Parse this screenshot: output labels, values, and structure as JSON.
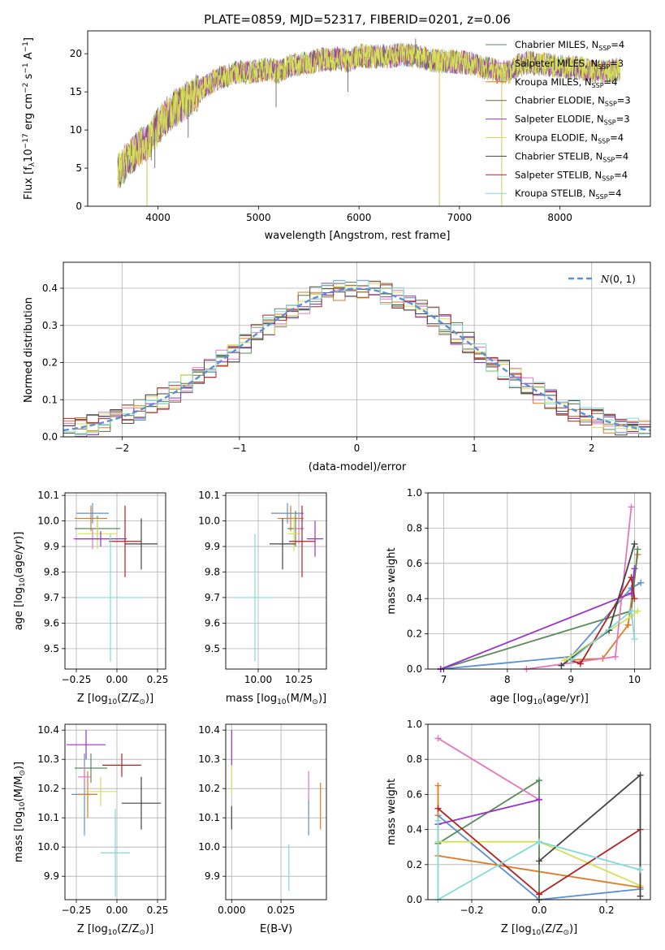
{
  "chart_data": [
    {
      "type": "line",
      "title": "PLATE=0859, MJD=52317, FIBERID=0201, z=0.06",
      "xlabel": "wavelength [Angstrom, rest frame]",
      "ylabel_parts": [
        "Flux [f",
        "λ",
        "10",
        "−17",
        " erg cm",
        "−2",
        " s",
        "−1",
        " A",
        "−1",
        "]"
      ],
      "xlim": [
        3300,
        8900
      ],
      "ylim": [
        0,
        23
      ],
      "xticks": [
        4000,
        5000,
        6000,
        7000,
        8000
      ],
      "yticks": [
        0,
        5,
        10,
        15,
        20
      ],
      "xtick_labels": [
        "4000",
        "5000",
        "6000",
        "7000",
        "8000"
      ],
      "ytick_labels": [
        "0",
        "5",
        "10",
        "15",
        "20"
      ],
      "legend_position": "top-right",
      "series": [
        {
          "name": "Chabrier MILES, N",
          "sub": "SSP",
          "tail": "=4",
          "color": "#5a8a5a"
        },
        {
          "name": "Salpeter MILES, N",
          "sub": "SSP",
          "tail": "=3",
          "color": "#e377c2"
        },
        {
          "name": "Kroupa MILES, N",
          "sub": "SSP",
          "tail": "=4",
          "color": "#e07b24"
        },
        {
          "name": "Chabrier ELODIE, N",
          "sub": "SSP",
          "tail": "=3",
          "color": "#6b6b3a"
        },
        {
          "name": "Salpeter ELODIE, N",
          "sub": "SSP",
          "tail": "=3",
          "color": "#9932cc"
        },
        {
          "name": "Kroupa ELODIE, N",
          "sub": "SSP",
          "tail": "=4",
          "color": "#d4e157"
        },
        {
          "name": "Chabrier STELIB, N",
          "sub": "SSP",
          "tail": "=4",
          "color": "#444444"
        },
        {
          "name": "Salpeter STELIB, N",
          "sub": "SSP",
          "tail": "=4",
          "color": "#b22222"
        },
        {
          "name": "Kroupa STELIB, N",
          "sub": "SSP",
          "tail": "=4",
          "color": "#7fdbda"
        }
      ],
      "continuum": [
        [
          3600,
          4.5
        ],
        [
          3700,
          6
        ],
        [
          3800,
          7.5
        ],
        [
          3900,
          8.5
        ],
        [
          4000,
          10.5
        ],
        [
          4100,
          12
        ],
        [
          4200,
          13.2
        ],
        [
          4300,
          14
        ],
        [
          4400,
          15
        ],
        [
          4500,
          16
        ],
        [
          4600,
          16.8
        ],
        [
          4700,
          17.2
        ],
        [
          4800,
          17.6
        ],
        [
          4900,
          17.5
        ],
        [
          5000,
          17.8
        ],
        [
          5100,
          18
        ],
        [
          5200,
          17.6
        ],
        [
          5300,
          18.4
        ],
        [
          5400,
          18.6
        ],
        [
          5500,
          18.8
        ],
        [
          5600,
          19.2
        ],
        [
          5700,
          19.2
        ],
        [
          5800,
          19.4
        ],
        [
          5900,
          19
        ],
        [
          6000,
          19.8
        ],
        [
          6100,
          19.6
        ],
        [
          6200,
          19.6
        ],
        [
          6300,
          19.7
        ],
        [
          6400,
          19.8
        ],
        [
          6500,
          19.8
        ],
        [
          6600,
          19.6
        ],
        [
          6700,
          19.3
        ],
        [
          6800,
          19
        ],
        [
          6900,
          19
        ],
        [
          7000,
          18.9
        ],
        [
          7100,
          18.8
        ],
        [
          7200,
          18.4
        ],
        [
          7300,
          18
        ],
        [
          7400,
          17.6
        ],
        [
          7500,
          17.6
        ],
        [
          7600,
          18.6
        ],
        [
          7700,
          18.8
        ],
        [
          7800,
          18.6
        ],
        [
          7900,
          18.5
        ],
        [
          8000,
          18.3
        ],
        [
          8100,
          18.2
        ],
        [
          8200,
          18.2
        ],
        [
          8300,
          17.7
        ],
        [
          8400,
          17.6
        ],
        [
          8500,
          17.8
        ],
        [
          8600,
          17.9
        ]
      ],
      "spikes": [
        [
          3890,
          0
        ],
        [
          3933,
          6
        ],
        [
          3968,
          5
        ],
        [
          4300,
          9
        ],
        [
          5175,
          13
        ],
        [
          5890,
          15
        ],
        [
          6563,
          22
        ],
        [
          6800,
          0
        ],
        [
          7420,
          0
        ]
      ]
    },
    {
      "type": "bar",
      "xlabel": "(data-model)/error",
      "ylabel": "Normed distribution",
      "xlim": [
        -2.5,
        2.5
      ],
      "ylim": [
        0,
        0.47
      ],
      "xticks": [
        -2,
        -1,
        0,
        1,
        2
      ],
      "xtick_labels": [
        "−2",
        "−1",
        "0",
        "1",
        "2"
      ],
      "yticks": [
        0,
        0.1,
        0.2,
        0.3,
        0.4
      ],
      "ytick_labels": [
        "0.0",
        "0.1",
        "0.2",
        "0.3",
        "0.4"
      ],
      "bin_width": 0.1,
      "legend": {
        "dash_color": "#5b8fd6",
        "label_n": "N",
        "label_args": "(0, 1)",
        "position": "top-right"
      }
    },
    {
      "type": "scatter",
      "name": "age-vs-Z",
      "xlabel_parts": [
        "Z [log",
        "10",
        "(Z/Z",
        "⊙",
        ")]"
      ],
      "ylabel_parts": [
        "age  [log",
        "10",
        "(age/yr)]"
      ],
      "xlim": [
        -0.32,
        0.3
      ],
      "ylim": [
        9.42,
        10.11
      ],
      "xticks": [
        -0.25,
        0,
        0.25
      ],
      "xtick_labels": [
        "−0.25",
        "0.00",
        "0.25"
      ],
      "yticks": [
        9.5,
        9.6,
        9.7,
        9.8,
        9.9,
        10.0,
        10.1
      ],
      "ytick_labels": [
        "9.5",
        "9.6",
        "9.7",
        "9.8",
        "9.9",
        "10.0",
        "10.1"
      ],
      "points": [
        {
          "x": -0.15,
          "xerr": 0.1,
          "y": 10.03,
          "yerr": 0.04,
          "color": "#5b8fd6"
        },
        {
          "x": -0.16,
          "xerr": 0.1,
          "y": 10.01,
          "yerr": 0.05,
          "color": "#e07b24"
        },
        {
          "x": -0.12,
          "xerr": 0.14,
          "y": 9.97,
          "yerr": 0.05,
          "color": "#5a8a5a"
        },
        {
          "x": -0.12,
          "xerr": 0.12,
          "y": 9.95,
          "yerr": 0.06,
          "color": "#d4e157"
        },
        {
          "x": -0.15,
          "xerr": 0.12,
          "y": 9.93,
          "yerr": 0.04,
          "color": "#e377c2"
        },
        {
          "x": -0.1,
          "xerr": 0.16,
          "y": 9.93,
          "yerr": 0.03,
          "color": "#9932cc"
        },
        {
          "x": 0.05,
          "xerr": 0.1,
          "y": 9.92,
          "yerr": 0.14,
          "color": "#b22222"
        },
        {
          "x": 0.15,
          "xerr": 0.1,
          "y": 9.91,
          "yerr": 0.1,
          "color": "#444444"
        },
        {
          "x": -0.04,
          "xerr": 0.2,
          "y": 9.7,
          "yerr": 0.25,
          "color": "#7fdbda"
        }
      ]
    },
    {
      "type": "scatter",
      "name": "age-vs-mass",
      "xlabel_parts": [
        "mass [log",
        "10",
        "(M/M",
        "⊙",
        ")]"
      ],
      "xlim": [
        9.8,
        10.42
      ],
      "ylim": [
        9.42,
        10.11
      ],
      "xticks": [
        10.0,
        10.25
      ],
      "xtick_labels": [
        "10.00",
        "10.25"
      ],
      "yticks": [
        9.5,
        9.6,
        9.7,
        9.8,
        9.9,
        10.0,
        10.1
      ],
      "ytick_labels": [
        "9.5",
        "9.6",
        "9.7",
        "9.8",
        "9.9",
        "10.0",
        "10.1"
      ],
      "points": [
        {
          "x": 10.18,
          "xerr": 0.1,
          "y": 10.03,
          "yerr": 0.04,
          "color": "#5b8fd6"
        },
        {
          "x": 10.2,
          "xerr": 0.08,
          "y": 10.01,
          "yerr": 0.05,
          "color": "#e07b24"
        },
        {
          "x": 10.23,
          "xerr": 0.05,
          "y": 9.97,
          "yerr": 0.07,
          "color": "#5a8a5a"
        },
        {
          "x": 10.22,
          "xerr": 0.04,
          "y": 9.95,
          "yerr": 0.07,
          "color": "#d4e157"
        },
        {
          "x": 10.25,
          "xerr": 0.03,
          "y": 9.97,
          "yerr": 0.06,
          "color": "#e377c2"
        },
        {
          "x": 10.35,
          "xerr": 0.05,
          "y": 9.93,
          "yerr": 0.07,
          "color": "#9932cc"
        },
        {
          "x": 10.27,
          "xerr": 0.08,
          "y": 9.92,
          "yerr": 0.14,
          "color": "#b22222"
        },
        {
          "x": 10.15,
          "xerr": 0.08,
          "y": 9.91,
          "yerr": 0.1,
          "color": "#444444"
        },
        {
          "x": 9.98,
          "xerr": 0.12,
          "y": 9.7,
          "yerr": 0.25,
          "color": "#7fdbda"
        }
      ]
    },
    {
      "type": "line",
      "name": "mass-weight-vs-age",
      "xlabel_parts": [
        "age  [log",
        "10",
        "(age/yr)]"
      ],
      "ylabel": "mass weight",
      "xlim": [
        6.75,
        10.25
      ],
      "ylim": [
        0,
        1
      ],
      "xticks": [
        7,
        8,
        9,
        10
      ],
      "xtick_labels": [
        "7",
        "8",
        "9",
        "10"
      ],
      "yticks": [
        0,
        0.2,
        0.4,
        0.6,
        0.8,
        1.0
      ],
      "ytick_labels": [
        "0.0",
        "0.2",
        "0.4",
        "0.6",
        "0.8",
        "1.0"
      ],
      "series": [
        {
          "color": "#5b8fd6",
          "x": [
            6.95,
            9.0,
            9.95,
            10.1
          ],
          "y": [
            0.0,
            0.07,
            0.46,
            0.49
          ]
        },
        {
          "color": "#e07b24",
          "x": [
            8.9,
            9.5,
            9.9,
            10.05
          ],
          "y": [
            0.05,
            0.06,
            0.25,
            0.65
          ]
        },
        {
          "color": "#5a8a5a",
          "x": [
            6.95,
            9.95,
            10.05
          ],
          "y": [
            0.0,
            0.33,
            0.68
          ]
        },
        {
          "color": "#d4e157",
          "x": [
            8.9,
            9.95,
            10.05
          ],
          "y": [
            0.05,
            0.3,
            0.33
          ]
        },
        {
          "color": "#e377c2",
          "x": [
            8.3,
            9.7,
            9.95
          ],
          "y": [
            0.0,
            0.07,
            0.92
          ]
        },
        {
          "color": "#9932cc",
          "x": [
            6.95,
            9.95,
            10.0
          ],
          "y": [
            0.0,
            0.43,
            0.57
          ]
        },
        {
          "color": "#b22222",
          "x": [
            9.0,
            9.15,
            9.95,
            10.0
          ],
          "y": [
            0.05,
            0.03,
            0.52,
            0.4
          ]
        },
        {
          "color": "#444444",
          "x": [
            8.85,
            9.6,
            10.0
          ],
          "y": [
            0.02,
            0.22,
            0.71
          ]
        },
        {
          "color": "#7fdbda",
          "x": [
            9.0,
            9.95,
            10.0
          ],
          "y": [
            0.05,
            0.33,
            0.17
          ]
        }
      ]
    },
    {
      "type": "scatter",
      "name": "mass-vs-Z",
      "xlabel_parts": [
        "Z [log",
        "10",
        "(Z/Z",
        "⊙",
        ")]"
      ],
      "ylabel_parts": [
        "mass [log",
        "10",
        "(M/M",
        "⊙",
        ")]"
      ],
      "xlim": [
        -0.32,
        0.3
      ],
      "ylim": [
        9.82,
        10.42
      ],
      "xticks": [
        -0.25,
        0,
        0.25
      ],
      "xtick_labels": [
        "−0.25",
        "0.00",
        "0.25"
      ],
      "yticks": [
        9.9,
        10.0,
        10.1,
        10.2,
        10.3,
        10.4
      ],
      "ytick_labels": [
        "9.9",
        "10.0",
        "10.1",
        "10.2",
        "10.3",
        "10.4"
      ],
      "points": [
        {
          "x": -0.2,
          "xerr": 0.08,
          "y": 10.18,
          "yerr": 0.14,
          "color": "#5b8fd6"
        },
        {
          "x": -0.18,
          "xerr": 0.06,
          "y": 10.18,
          "yerr": 0.08,
          "color": "#e07b24"
        },
        {
          "x": -0.16,
          "xerr": 0.1,
          "y": 10.27,
          "yerr": 0.05,
          "color": "#5a8a5a"
        },
        {
          "x": -0.1,
          "xerr": 0.1,
          "y": 10.19,
          "yerr": 0.05,
          "color": "#d4e157"
        },
        {
          "x": -0.2,
          "xerr": 0.04,
          "y": 10.24,
          "yerr": 0.04,
          "color": "#e377c2"
        },
        {
          "x": -0.19,
          "xerr": 0.12,
          "y": 10.35,
          "yerr": 0.05,
          "color": "#9932cc"
        },
        {
          "x": 0.03,
          "xerr": 0.12,
          "y": 10.28,
          "yerr": 0.04,
          "color": "#b22222"
        },
        {
          "x": 0.15,
          "xerr": 0.12,
          "y": 10.15,
          "yerr": 0.09,
          "color": "#444444"
        },
        {
          "x": -0.01,
          "xerr": 0.09,
          "y": 9.98,
          "yerr": 0.15,
          "color": "#7fdbda"
        }
      ]
    },
    {
      "type": "scatter",
      "name": "mass-vs-EBV",
      "xlabel": "E(B-V)",
      "xlim": [
        -0.003,
        0.048
      ],
      "ylim": [
        9.82,
        10.42
      ],
      "xticks": [
        0,
        0.025
      ],
      "xtick_labels": [
        "0.000",
        "0.025"
      ],
      "yticks": [
        9.9,
        10.0,
        10.1,
        10.2,
        10.3,
        10.4
      ],
      "ytick_labels": [
        "9.9",
        "10.0",
        "10.1",
        "10.2",
        "10.3",
        "10.4"
      ],
      "points": [
        {
          "x": 0.0,
          "y": 10.34,
          "yerr": 0.06,
          "color": "#9932cc"
        },
        {
          "x": 0.0,
          "y": 10.1,
          "yerr": 0.04,
          "color": "#444444"
        },
        {
          "x": 0.0,
          "y": 10.23,
          "yerr": 0.05,
          "color": "#d4e157"
        },
        {
          "x": 0.029,
          "y": 9.93,
          "yerr": 0.08,
          "color": "#7fdbda"
        },
        {
          "x": 0.039,
          "y": 10.2,
          "yerr": 0.06,
          "color": "#e377c2"
        },
        {
          "x": 0.039,
          "y": 10.1,
          "yerr": 0.06,
          "color": "#5b8fd6"
        },
        {
          "x": 0.045,
          "y": 10.14,
          "yerr": 0.08,
          "color": "#e07b24"
        }
      ]
    },
    {
      "type": "line",
      "name": "mass-weight-vs-Z",
      "xlabel_parts": [
        "Z [log",
        "10",
        "(Z/Z",
        "⊙",
        ")]"
      ],
      "ylabel": "mass weight",
      "xlim": [
        -0.33,
        0.33
      ],
      "ylim": [
        0,
        1
      ],
      "xticks": [
        -0.2,
        0,
        0.2
      ],
      "xtick_labels": [
        "−0.2",
        "0.0",
        "0.2"
      ],
      "yticks": [
        0,
        0.2,
        0.4,
        0.6,
        0.8,
        1.0
      ],
      "ytick_labels": [
        "0.0",
        "0.2",
        "0.4",
        "0.6",
        "0.8",
        "1.0"
      ],
      "series": [
        {
          "color": "#5b8fd6",
          "x": [
            -0.3,
            0.0,
            0.3
          ],
          "y": [
            0.48,
            0.0,
            0.06
          ]
        },
        {
          "color": "#e07b24",
          "x": [
            -0.3,
            -0.3,
            0.3
          ],
          "y": [
            0.65,
            0.25,
            0.07
          ]
        },
        {
          "color": "#5a8a5a",
          "x": [
            -0.3,
            0.0,
            0.0
          ],
          "y": [
            0.32,
            0.68,
            0.0
          ]
        },
        {
          "color": "#d4e157",
          "x": [
            -0.3,
            0.0,
            0.3
          ],
          "y": [
            0.33,
            0.33,
            0.08
          ]
        },
        {
          "color": "#e377c2",
          "x": [
            -0.3,
            0.0
          ],
          "y": [
            0.92,
            0.57
          ]
        },
        {
          "color": "#9932cc",
          "x": [
            -0.3,
            0.0
          ],
          "y": [
            0.43,
            0.57
          ]
        },
        {
          "color": "#b22222",
          "x": [
            -0.3,
            0.0,
            0.3
          ],
          "y": [
            0.52,
            0.03,
            0.4
          ]
        },
        {
          "color": "#444444",
          "x": [
            0.0,
            0.3,
            0.3
          ],
          "y": [
            0.22,
            0.71,
            0.02
          ]
        },
        {
          "color": "#7fdbda",
          "x": [
            -0.3,
            -0.3,
            0.0,
            0.3
          ],
          "y": [
            0.45,
            0.0,
            0.33,
            0.17
          ]
        }
      ]
    }
  ]
}
